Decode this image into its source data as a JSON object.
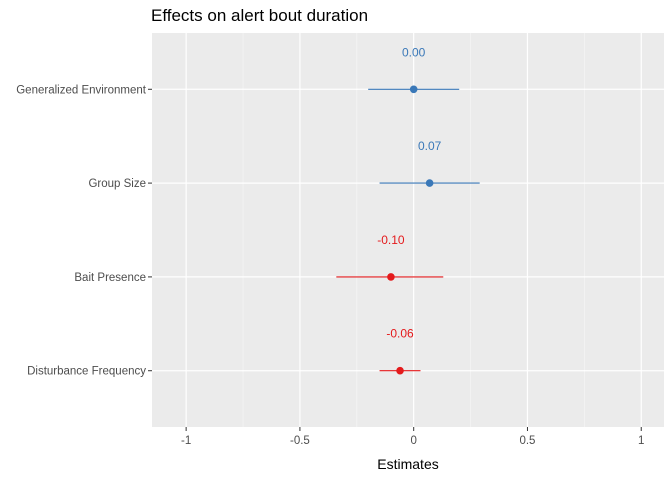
{
  "chart_data": {
    "type": "forest",
    "title": "Effects on alert bout duration",
    "xlabel": "Estimates",
    "ylabel": "",
    "xlim": [
      -1.15,
      1.1
    ],
    "x_ticks": [
      -1,
      -0.5,
      0,
      0.5,
      1
    ],
    "x_tick_labels": [
      "-1",
      "-0.5",
      "0",
      "0.5",
      "1"
    ],
    "grid": true,
    "legend": "none",
    "colors": {
      "positive": "#3a78b8",
      "negative": "#e41a1c",
      "panel_background": "#ebebeb",
      "grid_major": "#ffffff",
      "grid_minor": "#f5f5f5"
    },
    "terms": [
      {
        "name": "Generalized Environment",
        "estimate": 0.0,
        "ci_low": -0.2,
        "ci_high": 0.2,
        "label": "0.00",
        "sign": "positive"
      },
      {
        "name": "Group Size",
        "estimate": 0.07,
        "ci_low": -0.15,
        "ci_high": 0.29,
        "label": "0.07",
        "sign": "positive"
      },
      {
        "name": "Bait Presence",
        "estimate": -0.1,
        "ci_low": -0.34,
        "ci_high": 0.13,
        "label": "-0.10",
        "sign": "negative"
      },
      {
        "name": "Disturbance Frequency",
        "estimate": -0.06,
        "ci_low": -0.15,
        "ci_high": 0.03,
        "label": "-0.06",
        "sign": "negative"
      }
    ]
  }
}
